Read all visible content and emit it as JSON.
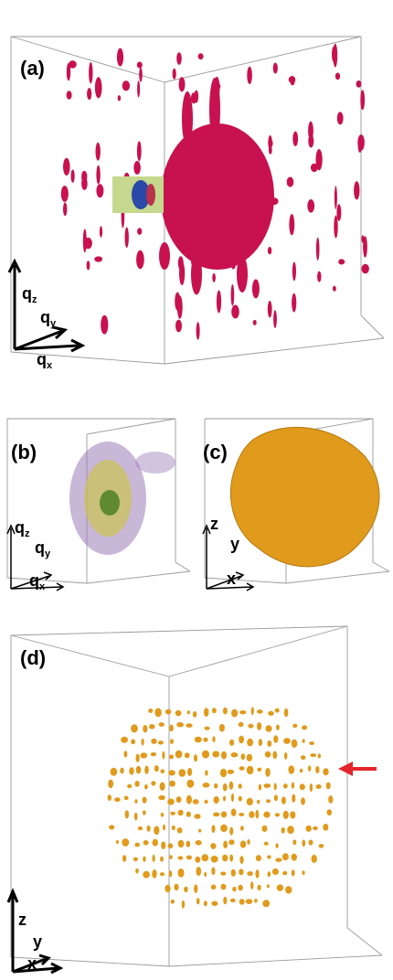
{
  "panels": [
    {
      "id": "a",
      "label": "(a)",
      "axes": {
        "z": "q",
        "z_sub": "z",
        "y": "q",
        "y_sub": "y",
        "x": "q",
        "x_sub": "x"
      }
    },
    {
      "id": "b",
      "label": "(b)",
      "axes": {
        "z": "q",
        "z_sub": "z",
        "y": "q",
        "y_sub": "y",
        "x": "q",
        "x_sub": "x"
      }
    },
    {
      "id": "c",
      "label": "(c)",
      "axes": {
        "z": "z",
        "y": "y",
        "x": "x"
      }
    },
    {
      "id": "d",
      "label": "(d)",
      "axes": {
        "z": "z",
        "y": "y",
        "x": "x"
      }
    }
  ],
  "colors": {
    "diffraction": "#c8114f",
    "highlight_box": "#c5d88e",
    "blue_core": "#2b49a8",
    "cloud_purple": "#9c7bb8",
    "cloud_yellow": "#c9c35a",
    "cloud_green": "#5f8a32",
    "particle": "#e09a1c",
    "arrow": "#e3262b"
  }
}
